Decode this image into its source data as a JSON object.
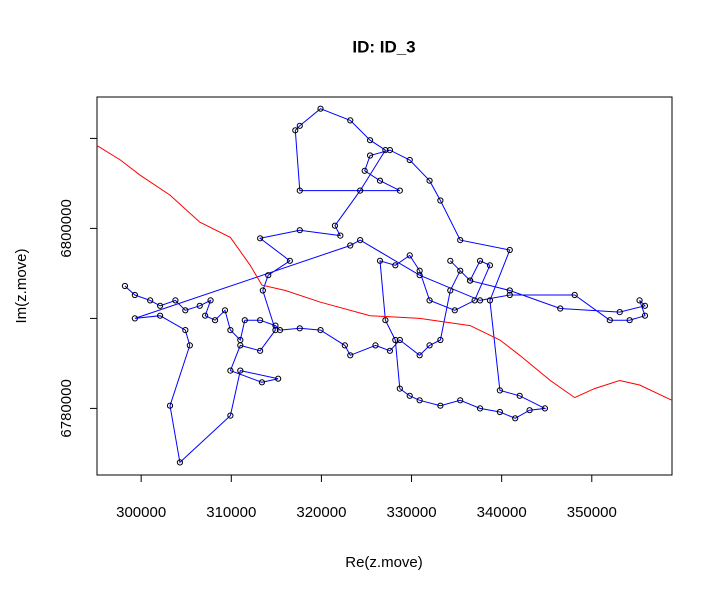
{
  "chart_data": {
    "type": "line",
    "title": "ID: ID_3",
    "x_label": "Re(z.move)",
    "y_label": "Im(z.move)",
    "xlim": [
      295100,
      358900
    ],
    "ylim": [
      6772600,
      6814600
    ],
    "xticks": [
      300000,
      310000,
      320000,
      330000,
      340000,
      350000
    ],
    "yticks": [
      6780000,
      6790000,
      6800000,
      6810000
    ],
    "series": [
      {
        "color": "#0000ff",
        "marker": "circle",
        "x": [
          298200,
          299300,
          301000,
          302100,
          303800,
          304900,
          306500,
          307700,
          307100,
          308200,
          309300,
          309900,
          311000,
          311500,
          313200,
          314900,
          315400,
          317600,
          319900,
          322600,
          323200,
          326000,
          327600,
          328700,
          330900,
          332000,
          333200,
          334300,
          335400,
          336500,
          337600,
          338700,
          337000,
          334800,
          332000,
          330900,
          329800,
          328200,
          326500,
          327100,
          328200,
          328700,
          329800,
          330900,
          333200,
          335400,
          337600,
          339800,
          341500,
          343100,
          344800,
          342000,
          339800,
          338700,
          340900,
          335400,
          333200,
          332000,
          329800,
          327600,
          325400,
          324800,
          326500,
          328700,
          317600,
          317100,
          317600,
          319900,
          323200,
          325400,
          327100,
          324300,
          321500,
          322100,
          317600,
          313200,
          316500,
          314100,
          313500,
          314900,
          313200,
          311000,
          309900,
          313400,
          315200,
          311000,
          309900,
          304300,
          303200,
          305400,
          304900,
          302100,
          299300,
          323200,
          324300,
          330900,
          337600,
          340900,
          348100,
          352000,
          354200,
          355900,
          355300,
          355900,
          353100,
          346500,
          340900,
          336500,
          334300
        ],
        "values": [
          6793600,
          6792600,
          6792000,
          6791400,
          6792000,
          6790900,
          6791400,
          6792000,
          6790300,
          6789800,
          6790900,
          6788700,
          6787600,
          6789800,
          6789800,
          6789200,
          6788700,
          6788900,
          6788700,
          6787000,
          6785900,
          6787000,
          6786400,
          6787600,
          6785900,
          6787000,
          6787600,
          6793100,
          6795300,
          6794200,
          6796400,
          6795900,
          6792000,
          6790900,
          6792000,
          6795300,
          6797000,
          6795900,
          6796400,
          6789800,
          6787600,
          6782200,
          6781400,
          6780900,
          6780300,
          6780900,
          6780000,
          6779600,
          6778900,
          6779800,
          6780000,
          6781400,
          6782000,
          6792000,
          6797600,
          6798700,
          6803100,
          6805300,
          6807600,
          6808700,
          6808100,
          6806400,
          6805300,
          6804200,
          6804200,
          6810900,
          6811400,
          6813300,
          6812000,
          6809800,
          6808700,
          6804200,
          6800300,
          6799200,
          6799800,
          6798900,
          6796400,
          6794800,
          6793100,
          6788700,
          6786400,
          6787000,
          6784200,
          6782900,
          6783300,
          6784200,
          6779200,
          6774000,
          6780300,
          6787000,
          6788700,
          6790300,
          6790000,
          6798100,
          6798700,
          6794800,
          6792000,
          6792600,
          6792600,
          6789800,
          6789800,
          6790300,
          6792000,
          6791400,
          6790700,
          6791100,
          6793100,
          6794200,
          6796400
        ]
      },
      {
        "color": "#ff0000",
        "x": [
          295100,
          297700,
          299900,
          303200,
          306500,
          309900,
          312100,
          313400,
          316000,
          319900,
          325400,
          330900,
          336500,
          339800,
          342000,
          345400,
          348100,
          350300,
          353100,
          355300,
          358900
        ],
        "values": [
          6809200,
          6807600,
          6805900,
          6803700,
          6800700,
          6799000,
          6795900,
          6793700,
          6793100,
          6791800,
          6790300,
          6790000,
          6789200,
          6787600,
          6785900,
          6783100,
          6781200,
          6782200,
          6783100,
          6782600,
          6780900
        ]
      }
    ]
  }
}
